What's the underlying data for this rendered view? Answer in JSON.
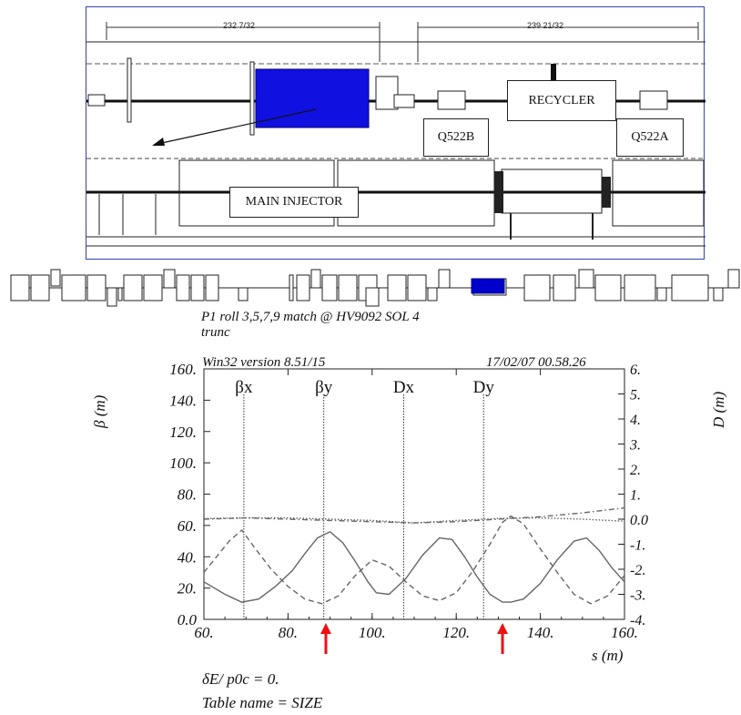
{
  "schematic": {
    "dimension_left": "232 7/32",
    "dimension_right": "239 21/32",
    "labels": {
      "main_injector": "MAIN INJECTOR",
      "recycler": "RECYCLER",
      "q522b": "Q522B",
      "q522a": "Q522A"
    },
    "colors": {
      "highlight": "#1010e0",
      "frame": "#3344aa"
    }
  },
  "lattice": {
    "highlight_color": "#0000cc"
  },
  "header": {
    "title_line1": "P1 roll 3,5,7,9 match @ HV9092 SOL 4",
    "title_line2": "trunc",
    "version": "Win32 version 8.51/15",
    "timestamp": "17/02/07   00.58.26"
  },
  "footer": {
    "delta_line": "δE/ p0c  =  0.",
    "table_line": "Table name = SIZE"
  },
  "chart_data": {
    "type": "line",
    "xlabel": "s (m)",
    "xlim": [
      60,
      160
    ],
    "x_ticks": [
      "60.",
      "80.",
      "100.",
      "120.",
      "140.",
      "160."
    ],
    "y_left": {
      "label": "β (m)",
      "lim": [
        0,
        160
      ],
      "ticks": [
        "0.0",
        "20.",
        "40.",
        "60.",
        "80.",
        "100.",
        "120.",
        "140.",
        "160."
      ]
    },
    "y_right": {
      "label": "D (m)",
      "lim": [
        -4,
        6
      ],
      "ticks": [
        "-4.",
        "-3.",
        "-2.",
        "-1.",
        "0.0",
        "1.",
        "2.",
        "3.",
        "4.",
        "5.",
        "6."
      ]
    },
    "legend_markers": [
      {
        "name": "βx",
        "x": 69.5
      },
      {
        "name": "βy",
        "x": 88.5
      },
      {
        "name": "Dx",
        "x": 107.5
      },
      {
        "name": "Dy",
        "x": 126.5
      }
    ],
    "series": [
      {
        "name": "βx",
        "axis": "left",
        "style": "solid",
        "x": [
          60,
          65,
          69,
          73,
          77,
          81,
          84,
          87,
          90,
          93,
          96,
          99,
          101,
          104,
          108,
          112,
          116,
          119,
          122,
          125,
          128,
          131,
          133,
          136,
          140,
          144,
          148,
          151,
          154,
          157,
          160
        ],
        "y": [
          24,
          16,
          11,
          13,
          21,
          31,
          42,
          52,
          56,
          49,
          37,
          24,
          17,
          16,
          26,
          41,
          52,
          51,
          40,
          27,
          16,
          11,
          11,
          13,
          23,
          38,
          50,
          52,
          44,
          33,
          24
        ]
      },
      {
        "name": "βy",
        "axis": "left",
        "style": "dashed",
        "x": [
          60,
          63,
          66,
          69,
          72,
          76,
          80,
          84,
          88,
          92,
          96,
          100,
          104,
          108,
          112,
          116,
          120,
          124,
          128,
          131,
          133,
          136,
          140,
          144,
          148,
          152,
          156,
          160
        ],
        "y": [
          30,
          40,
          50,
          57,
          46,
          32,
          21,
          13,
          10,
          15,
          28,
          38,
          34,
          24,
          15,
          12,
          17,
          31,
          48,
          62,
          66,
          61,
          45,
          30,
          16,
          10,
          15,
          28
        ]
      },
      {
        "name": "Dx",
        "axis": "right",
        "style": "dotted",
        "x": [
          60,
          70,
          80,
          90,
          100,
          110,
          120,
          130,
          140,
          150,
          160
        ],
        "y": [
          0.02,
          0.05,
          0.05,
          0.0,
          -0.05,
          -0.15,
          -0.05,
          0.03,
          0.05,
          0.0,
          -0.08
        ]
      },
      {
        "name": "Dy",
        "axis": "right",
        "style": "dash-dot",
        "x": [
          60,
          70,
          80,
          90,
          100,
          110,
          120,
          130,
          140,
          150,
          160
        ],
        "y": [
          0.0,
          0.05,
          0.0,
          -0.05,
          -0.1,
          -0.15,
          -0.1,
          0.0,
          0.1,
          0.25,
          0.45
        ]
      }
    ],
    "red_arrows_at_s": [
      89,
      131
    ],
    "grid": false,
    "colors": {
      "lines": "#666666",
      "arrows": "#ee1111"
    }
  }
}
